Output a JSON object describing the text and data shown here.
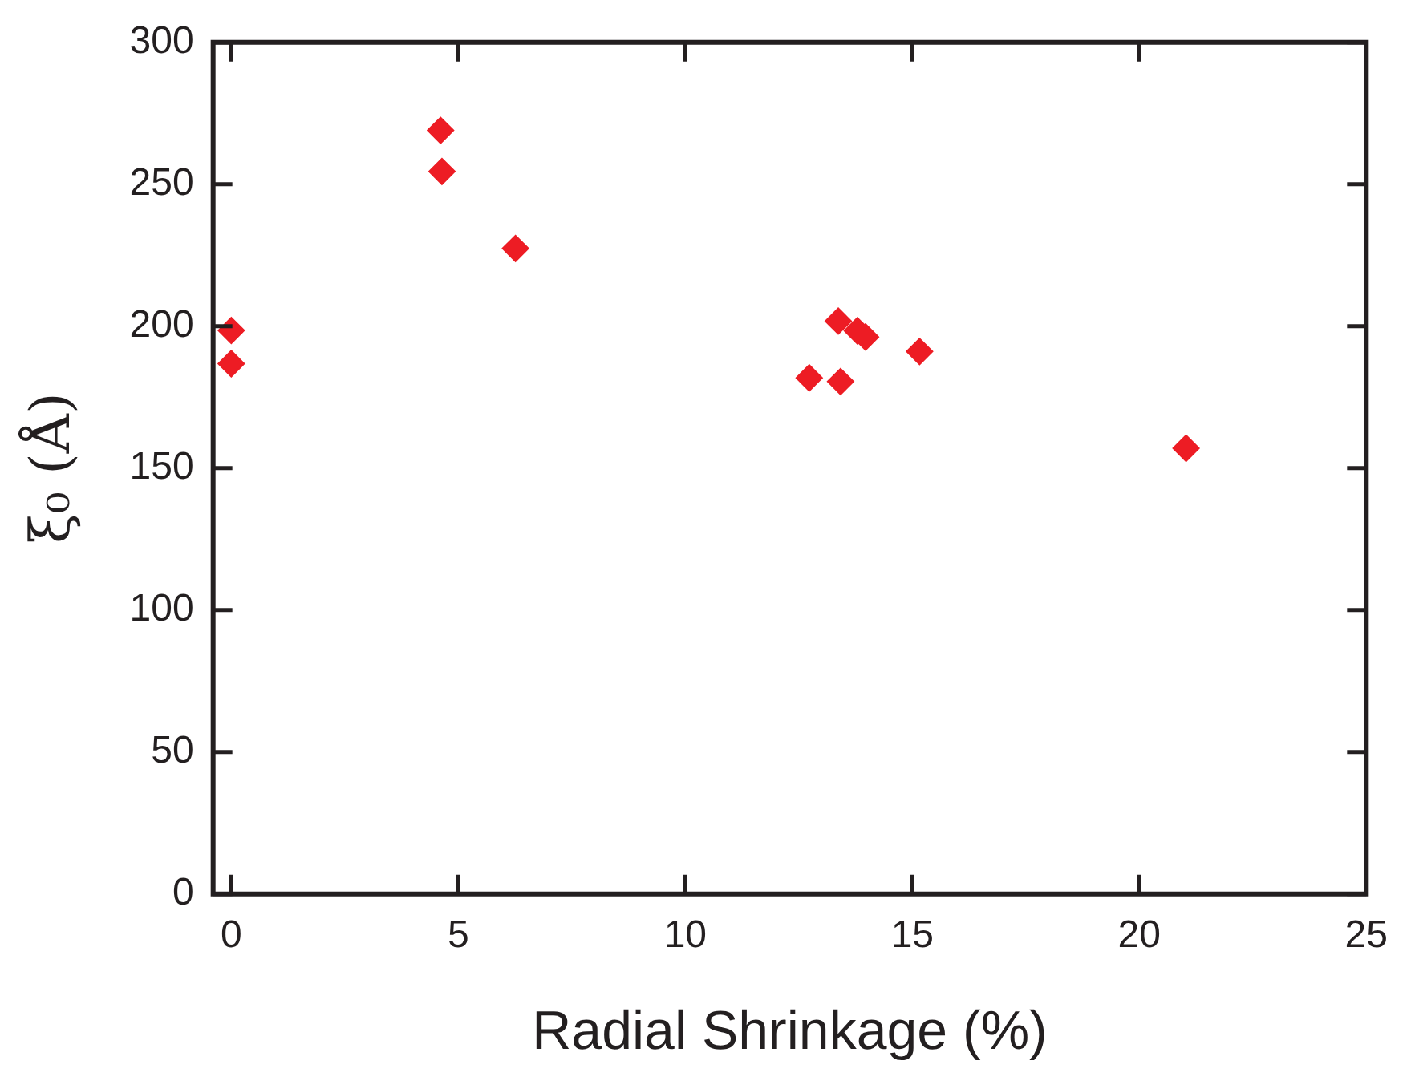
{
  "chart_data": {
    "type": "scatter",
    "xlabel": "Radial Shrinkage (%)",
    "ylabel": "ξ₀ (Å)",
    "x": [
      0,
      0,
      4.61,
      4.64,
      6.26,
      12.73,
      13.37,
      13.42,
      13.79,
      13.97,
      15.16,
      21.03
    ],
    "series": [
      {
        "color": "#ed1c24",
        "values": [
          198.5,
          186.8,
          269,
          254.5,
          227.4,
          181.8,
          201.8,
          180.5,
          198.4,
          196.2,
          191.1,
          157
        ]
      }
    ],
    "xlim": [
      -0.4,
      25
    ],
    "xticks": [
      0,
      5,
      10,
      15,
      20,
      25
    ],
    "ylim": [
      0,
      300
    ],
    "yticks": [
      0,
      50,
      100,
      150,
      200,
      250,
      300
    ],
    "grid": false,
    "legend": false,
    "marker": "diamond"
  }
}
